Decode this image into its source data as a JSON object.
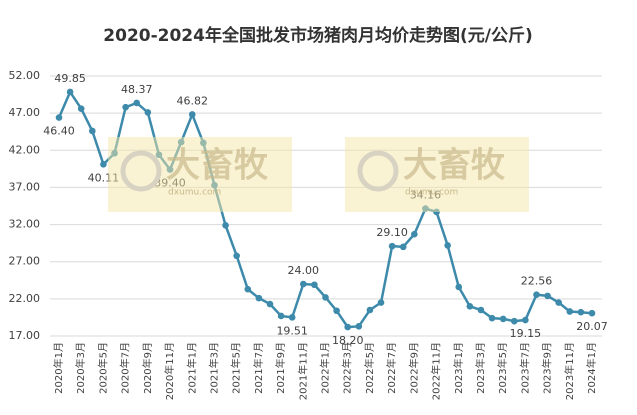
{
  "chart_data": {
    "type": "line",
    "title": "2020-2024年全国批发市场猪肉月均价走势图(元/公斤)",
    "categories": [
      "2020年1月",
      null,
      "2020年3月",
      null,
      "2020年5月",
      null,
      "2020年7月",
      null,
      "2020年9月",
      null,
      "2020年11月",
      null,
      "2021年1月",
      null,
      "2021年3月",
      null,
      "2021年5月",
      null,
      "2021年7月",
      null,
      "2021年9月",
      null,
      "2021年11月",
      null,
      "2022年1月",
      null,
      "2022年3月",
      null,
      "2022年5月",
      null,
      "2022年7月",
      null,
      "2022年9月",
      null,
      "2022年11月",
      null,
      "2023年1月",
      null,
      "2023年3月",
      null,
      "2023年5月",
      null,
      "2023年7月",
      null,
      "2023年9月",
      null,
      "2023年11月",
      null,
      "2024年1月"
    ],
    "series": [
      {
        "color": "#3d8aab",
        "values": [
          46.4,
          49.85,
          47.6,
          44.6,
          40.11,
          41.6,
          47.8,
          48.37,
          47.1,
          41.4,
          39.4,
          43.1,
          46.82,
          43.0,
          37.3,
          31.9,
          27.8,
          23.3,
          22.1,
          21.3,
          19.7,
          19.51,
          24.0,
          23.9,
          22.2,
          20.4,
          18.2,
          18.3,
          20.5,
          21.5,
          29.1,
          29.0,
          30.7,
          34.16,
          33.7,
          29.2,
          23.6,
          21.0,
          20.5,
          19.4,
          19.3,
          19.0,
          19.15,
          22.56,
          22.4,
          21.5,
          20.3,
          20.2,
          20.07
        ],
        "value_labels": [
          "46.40",
          "49.85",
          null,
          null,
          "40.11",
          null,
          null,
          "48.37",
          null,
          null,
          "39.40",
          null,
          "46.82",
          null,
          null,
          null,
          null,
          null,
          null,
          null,
          null,
          "19.51",
          "24.00",
          null,
          null,
          null,
          "18.20",
          null,
          null,
          null,
          "29.10",
          null,
          null,
          "34.16",
          null,
          null,
          null,
          null,
          null,
          null,
          null,
          null,
          "19.15",
          "22.56",
          null,
          null,
          null,
          null,
          "20.07"
        ]
      }
    ],
    "ylim": [
      17,
      52
    ],
    "yticks": [
      {
        "value": 17,
        "label": "17.00"
      },
      {
        "value": 22,
        "label": "22.00"
      },
      {
        "value": 27,
        "label": "27.00"
      },
      {
        "value": 32,
        "label": "32.00"
      },
      {
        "value": 37,
        "label": "37.00"
      },
      {
        "value": 42,
        "label": "42.00"
      },
      {
        "value": 47,
        "label": "47.00"
      },
      {
        "value": 52,
        "label": "52.00"
      }
    ],
    "grid": true,
    "watermark": {
      "text": "大畜牧",
      "url": "dxumu.com"
    }
  }
}
